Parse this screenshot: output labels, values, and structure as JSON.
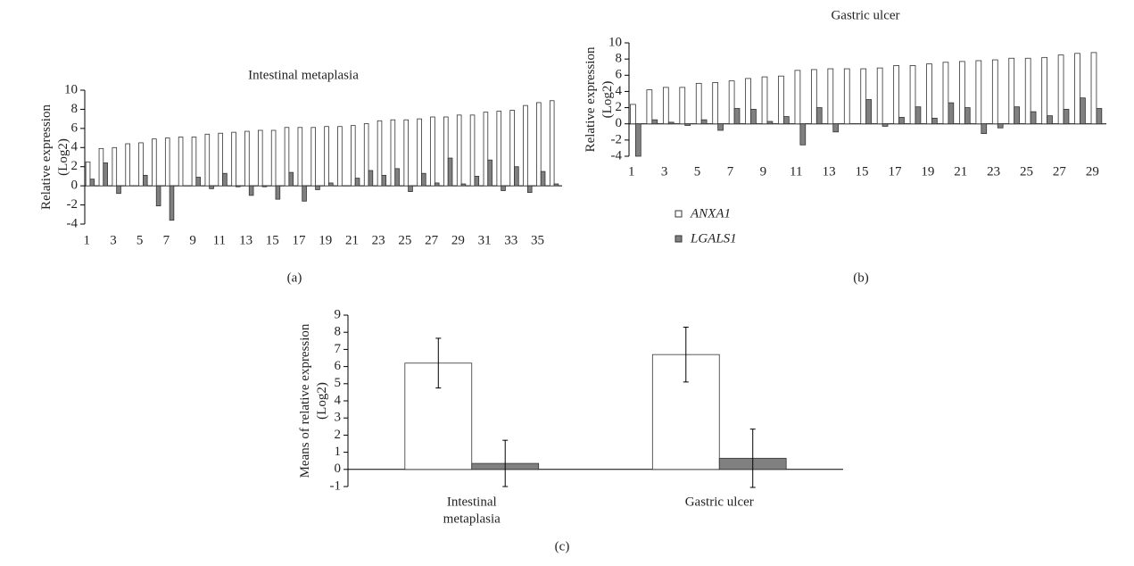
{
  "chart_data": [
    {
      "type": "bar",
      "title": "Intestinal metaplasia",
      "panel_label": "(a)",
      "y_label": [
        "Relative expression",
        "(Log2)"
      ],
      "categories": [
        "1",
        null,
        "3",
        null,
        "5",
        null,
        "7",
        null,
        "9",
        null,
        "11",
        null,
        "13",
        null,
        "15",
        null,
        "17",
        null,
        "19",
        null,
        "21",
        null,
        "23",
        null,
        "25",
        null,
        "27",
        null,
        "29",
        null,
        "31",
        null,
        "33",
        null,
        "35",
        null
      ],
      "series": [
        {
          "name": "ANXA1",
          "color": "#ffffff",
          "values": [
            2.5,
            3.9,
            4.0,
            4.4,
            4.5,
            4.9,
            5.0,
            5.1,
            5.1,
            5.4,
            5.5,
            5.6,
            5.7,
            5.8,
            5.8,
            6.1,
            6.1,
            6.1,
            6.2,
            6.2,
            6.3,
            6.5,
            6.8,
            6.9,
            6.9,
            7.0,
            7.2,
            7.2,
            7.4,
            7.4,
            7.7,
            7.8,
            7.9,
            8.4,
            8.7,
            8.9
          ]
        },
        {
          "name": "LGALS1",
          "color": "#808080",
          "values": [
            0.7,
            2.4,
            -0.8,
            0.0,
            1.1,
            -2.1,
            -3.6,
            0.0,
            0.9,
            -0.3,
            1.3,
            -0.1,
            -1.0,
            -0.1,
            -1.4,
            1.4,
            -1.6,
            -0.4,
            0.3,
            0.0,
            0.8,
            1.6,
            1.1,
            1.8,
            -0.6,
            1.3,
            0.3,
            2.9,
            0.2,
            1.0,
            2.7,
            -0.5,
            2.0,
            -0.7,
            1.5,
            0.2
          ]
        }
      ],
      "ylim": [
        -4,
        10
      ],
      "yticks": [
        -4,
        -2,
        0,
        2,
        4,
        6,
        8,
        10
      ],
      "legend": "none"
    },
    {
      "type": "bar",
      "title": "Gastric ulcer",
      "panel_label": "(b)",
      "y_label": [
        "Relative expression",
        "(Log2)"
      ],
      "categories": [
        "1",
        null,
        "3",
        null,
        "5",
        null,
        "7",
        null,
        "9",
        null,
        "11",
        null,
        "13",
        null,
        "15",
        null,
        "17",
        null,
        "19",
        null,
        "21",
        null,
        "23",
        null,
        "25",
        null,
        "27",
        null,
        "29"
      ],
      "series": [
        {
          "name": "ANXA1",
          "color": "#ffffff",
          "values": [
            2.4,
            4.2,
            4.5,
            4.5,
            5.0,
            5.1,
            5.3,
            5.6,
            5.8,
            5.9,
            6.6,
            6.7,
            6.8,
            6.8,
            6.8,
            6.9,
            7.2,
            7.2,
            7.4,
            7.6,
            7.7,
            7.8,
            7.9,
            8.1,
            8.1,
            8.2,
            8.5,
            8.7,
            8.8
          ]
        },
        {
          "name": "LGALS1",
          "color": "#808080",
          "values": [
            -4.0,
            0.5,
            0.2,
            -0.2,
            0.5,
            -0.8,
            1.9,
            1.8,
            0.3,
            0.9,
            -2.6,
            2.0,
            -1.0,
            0.0,
            3.0,
            -0.3,
            0.8,
            2.1,
            0.7,
            2.6,
            2.0,
            -1.2,
            -0.5,
            2.1,
            1.5,
            1.0,
            1.8,
            3.2,
            1.9
          ]
        }
      ],
      "ylim": [
        -4,
        10
      ],
      "yticks": [
        -4,
        -2,
        0,
        2,
        4,
        6,
        8,
        10
      ],
      "legend": "below"
    },
    {
      "type": "bar",
      "panel_label": "(c)",
      "y_label": [
        "Means of relative expression",
        "(Log2)"
      ],
      "categories": [
        [
          "Intestinal",
          "metaplasia"
        ],
        [
          "Gastric ulcer"
        ]
      ],
      "series": [
        {
          "name": "ANXA1",
          "color": "#ffffff",
          "values": [
            6.2,
            6.7
          ],
          "errors": [
            1.45,
            1.6
          ]
        },
        {
          "name": "LGALS1",
          "color": "#808080",
          "values": [
            0.35,
            0.65
          ],
          "errors": [
            1.35,
            1.7
          ]
        }
      ],
      "ylim": [
        -1,
        9
      ],
      "yticks": [
        -1,
        0,
        1,
        2,
        3,
        4,
        5,
        6,
        7,
        8,
        9
      ],
      "legend": "none"
    }
  ]
}
